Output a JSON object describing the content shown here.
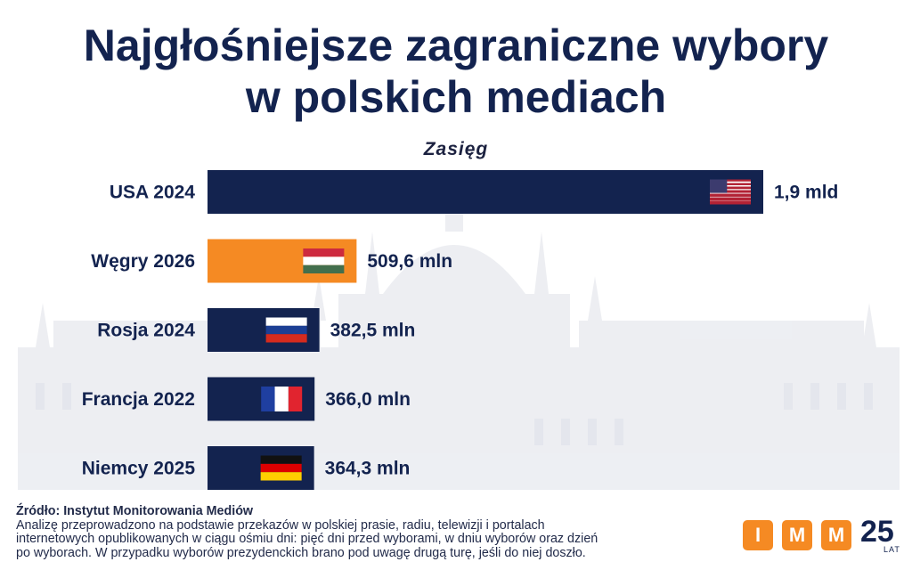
{
  "page": {
    "title_line1": "Najgłośniejsze zagraniczne wybory",
    "title_line2": "w polskich mediach",
    "subtitle": "Zasięg"
  },
  "chart_data": {
    "type": "bar",
    "orientation": "horizontal",
    "title": "Najgłośniejsze zagraniczne wybory w polskich mediach",
    "xlabel": "Zasięg",
    "ylabel": "",
    "unit": "mln",
    "categories": [
      "USA 2024",
      "Węgry 2026",
      "Rosja 2024",
      "Francja 2022",
      "Niemcy 2025"
    ],
    "values": [
      1900,
      509.6,
      382.5,
      366.0,
      364.3
    ],
    "value_labels": [
      "1,9 mld",
      "509,6 mln",
      "382,5 mln",
      "366,0 mln",
      "364,3 mln"
    ],
    "flags": [
      "usa-flag",
      "hungary-flag",
      "russia-flag",
      "france-flag",
      "germany-flag"
    ],
    "bar_colors": [
      "#13234f",
      "#f58a23",
      "#13234f",
      "#13234f",
      "#13234f"
    ],
    "xlim": [
      0,
      1900
    ]
  },
  "footer": {
    "source": "Źródło: Instytut Monitorowania Mediów",
    "note_line1": "Analizę przeprowadzono na podstawie przekazów w polskiej prasie, radiu, telewizji i portalach",
    "note_line2": "internetowych opublikowanych w ciągu ośmiu dni: pięć dni przed wyborami, w dniu wyborów oraz dzień",
    "note_line3": "po wyborach. W przypadku wyborów prezydenckich brano pod uwagę drugą turę, jeśli do niej doszło."
  },
  "logo": {
    "letters": [
      "I",
      "M",
      "M"
    ],
    "number": "25",
    "suffix": "LAT"
  },
  "colors": {
    "navy": "#13234f",
    "orange": "#f58a23"
  }
}
